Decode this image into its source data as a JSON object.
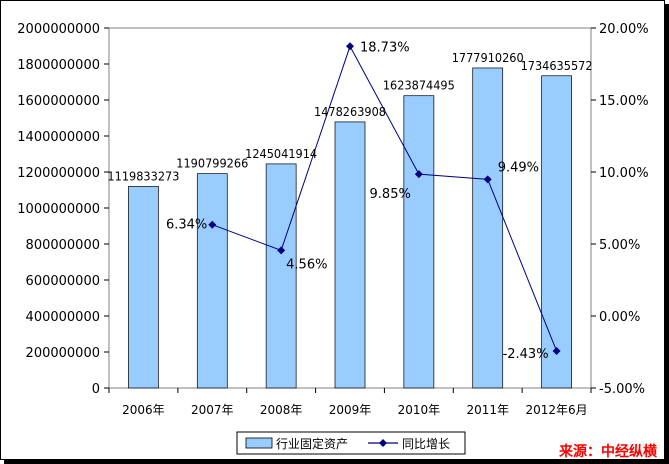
{
  "chart_data": {
    "type": "bar",
    "title": "",
    "categories": [
      "2006年",
      "2007年",
      "2008年",
      "2009年",
      "2010年",
      "2011年",
      "2012年6月"
    ],
    "series": [
      {
        "name": "行业固定资产",
        "type": "bar",
        "axis": "left",
        "values": [
          1119833273,
          1190799266,
          1245041914,
          1478263908,
          1623874495,
          1777910260,
          1734635572
        ],
        "labels": [
          "1119833273",
          "1190799266",
          "1245041914",
          "1478263908",
          "1623874495",
          "1777910260",
          "1734635572"
        ],
        "color": "#99ccff"
      },
      {
        "name": "同比增长",
        "type": "line",
        "axis": "right",
        "values": [
          null,
          6.34,
          4.56,
          18.73,
          9.85,
          9.49,
          -2.43
        ],
        "labels": [
          "",
          "6.34%",
          "4.56%",
          "18.73%",
          "9.85%",
          "9.49%",
          "-2.43%"
        ],
        "color": "#000080"
      }
    ],
    "y_left": {
      "min": 0,
      "max": 2000000000,
      "ticks": [
        0,
        200000000,
        400000000,
        600000000,
        800000000,
        1000000000,
        1200000000,
        1400000000,
        1600000000,
        1800000000,
        2000000000
      ],
      "tick_labels": [
        "0",
        "200000000",
        "400000000",
        "600000000",
        "800000000",
        "1000000000",
        "1200000000",
        "1400000000",
        "1600000000",
        "1800000000",
        "2000000000"
      ]
    },
    "y_right": {
      "min": -5,
      "max": 20,
      "ticks": [
        -5,
        0,
        5,
        10,
        15,
        20
      ],
      "tick_labels": [
        "-5.00%",
        "0.00%",
        "5.00%",
        "10.00%",
        "15.00%",
        "20.00%"
      ]
    },
    "grid": false,
    "legend_position": "bottom-center"
  },
  "source_text": "来源：中经纵横",
  "colors": {
    "bar_fill": "#99ccff",
    "line": "#000080",
    "source": "#ff0000"
  }
}
